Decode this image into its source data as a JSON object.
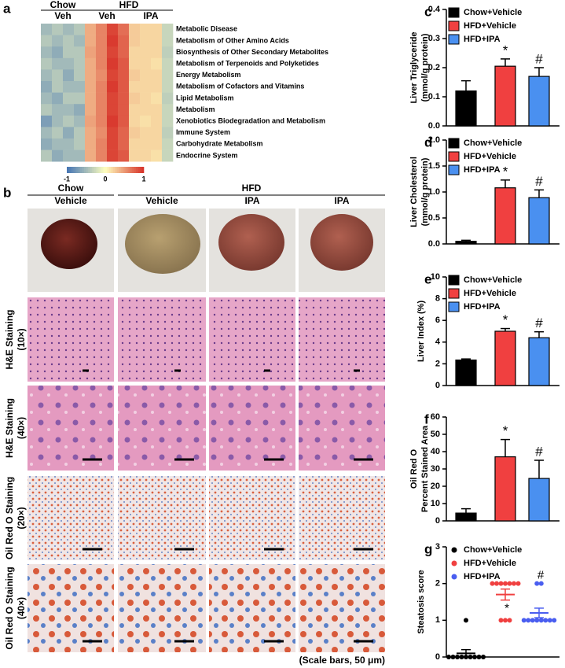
{
  "figure_b": {
    "panel": "b",
    "groups": [
      "Chow",
      "HFD"
    ],
    "columns": [
      "Vehicle",
      "Vehicle",
      "IPA",
      "IPA"
    ],
    "rows": [
      [
        "H&E Staining",
        "(10×)"
      ],
      [
        "H&E Staining",
        "(40×)"
      ],
      [
        "Oil Red O Staining",
        "(20×)"
      ],
      [
        "Oil Red O Staining",
        "(40×)"
      ]
    ],
    "note": "(Scale bars, 50 μm)"
  },
  "chart_data": [
    {
      "type": "heatmap",
      "panel": "a",
      "groups": [
        "Chow",
        "HFD"
      ],
      "subgroups": [
        "Veh",
        "Veh",
        "IPA"
      ],
      "rows": [
        "Metabolic Disease",
        "Metabolism of Other Amino Acids",
        "Biosynthesis of Other Secondary Metabolites",
        "Metabolism of Terpenoids and Polyketides",
        "Energy Metabolism",
        "Metabolism of Cofactors and Vitamins",
        "Lipid Metabolism",
        "Metabolism",
        "Xenobiotics Biodegradation and Metabolism",
        "Immune System",
        "Carbohydrate Metabolism",
        "Endocrine System"
      ],
      "values": [
        [
          -0.5,
          -0.4,
          -0.5,
          -0.4,
          0.4,
          0.6,
          0.9,
          0.7,
          0.25,
          0.2,
          0.2,
          -0.3
        ],
        [
          -0.4,
          -0.5,
          -0.4,
          -0.5,
          0.4,
          0.6,
          0.95,
          0.75,
          0.25,
          0.2,
          0.2,
          -0.3
        ],
        [
          -0.5,
          -0.6,
          -0.4,
          -0.4,
          0.45,
          0.6,
          0.9,
          0.75,
          0.2,
          0.2,
          0.2,
          -0.35
        ],
        [
          -0.4,
          -0.5,
          -0.5,
          -0.4,
          0.4,
          0.6,
          0.95,
          0.8,
          0.2,
          0.2,
          0.15,
          -0.3
        ],
        [
          -0.5,
          -0.4,
          -0.6,
          -0.4,
          0.4,
          0.55,
          0.9,
          0.8,
          0.25,
          0.2,
          0.2,
          -0.3
        ],
        [
          -0.6,
          -0.4,
          -0.5,
          -0.5,
          0.4,
          0.6,
          0.95,
          0.8,
          0.2,
          0.2,
          0.2,
          -0.3
        ],
        [
          -0.5,
          -0.6,
          -0.4,
          -0.4,
          0.4,
          0.6,
          0.9,
          0.8,
          0.25,
          0.2,
          0.15,
          -0.35
        ],
        [
          -0.4,
          -0.5,
          -0.5,
          -0.6,
          0.4,
          0.6,
          0.9,
          0.8,
          0.2,
          0.2,
          0.2,
          -0.3
        ],
        [
          -0.7,
          -0.5,
          -0.4,
          -0.5,
          0.45,
          0.6,
          0.95,
          0.8,
          0.2,
          0.15,
          0.2,
          -0.3
        ],
        [
          -0.5,
          -0.4,
          -0.6,
          -0.4,
          0.4,
          0.55,
          0.9,
          0.75,
          0.25,
          0.2,
          0.2,
          -0.35
        ],
        [
          -0.6,
          -0.5,
          -0.5,
          -0.4,
          0.4,
          0.6,
          0.9,
          0.75,
          0.2,
          0.2,
          0.2,
          -0.3
        ],
        [
          -0.4,
          -0.6,
          -0.5,
          -0.5,
          0.4,
          0.6,
          0.9,
          0.8,
          0.2,
          0.2,
          0.15,
          -0.3
        ]
      ],
      "zlim": [
        -1,
        1
      ],
      "zticks": [
        -1,
        0,
        1
      ],
      "colors": [
        "#4575b4",
        "#ffffbf",
        "#d73027"
      ]
    },
    {
      "type": "bar",
      "panel": "c",
      "ylabel": [
        "Liver Triglyceride",
        "(mmol/g protein)"
      ],
      "ylim": [
        0,
        0.4
      ],
      "yticks": [
        {
          "value": 0,
          "label": "0.0"
        },
        0.1,
        0.2,
        0.3,
        0.4
      ],
      "legend": "upper left",
      "series": [
        {
          "name": "Chow+Vehicle",
          "color": "#000000",
          "values": [
            0.12
          ],
          "errors": [
            0.035
          ]
        },
        {
          "name": "HFD+Vehicle",
          "color": "#f04040",
          "values": [
            0.205
          ],
          "errors": [
            0.025
          ]
        },
        {
          "name": "HFD+IPA",
          "color": "#4a90f0",
          "values": [
            0.17
          ],
          "errors": [
            0.03
          ]
        }
      ],
      "markers": [
        null,
        "*",
        "#"
      ]
    },
    {
      "type": "bar",
      "panel": "d",
      "ylabel": [
        "Liver Cholesterol",
        "(mmol/g protein)"
      ],
      "ylim": [
        0,
        2
      ],
      "yticks": [
        {
          "value": 0,
          "label": "0.0"
        },
        0.5,
        {
          "value": 1,
          "label": "1.0"
        },
        1.5,
        {
          "value": 2,
          "label": "2.0"
        }
      ],
      "legend": "upper left",
      "series": [
        {
          "name": "Chow+Vehicle",
          "color": "#000000",
          "values": [
            0.05
          ],
          "errors": [
            0.02
          ]
        },
        {
          "name": "HFD+Vehicle",
          "color": "#f04040",
          "values": [
            1.08
          ],
          "errors": [
            0.15
          ]
        },
        {
          "name": "HFD+IPA",
          "color": "#4a90f0",
          "values": [
            0.89
          ],
          "errors": [
            0.15
          ]
        }
      ],
      "markers": [
        null,
        "*",
        "#"
      ]
    },
    {
      "type": "bar",
      "panel": "e",
      "ylabel": [
        "Liver Index (%)"
      ],
      "ylim": [
        0,
        10
      ],
      "yticks": [
        0,
        2,
        4,
        6,
        8,
        10
      ],
      "legend": "upper left",
      "series": [
        {
          "name": "Chow+Vehicle",
          "color": "#000000",
          "values": [
            2.35
          ],
          "errors": [
            0.1
          ]
        },
        {
          "name": "HFD+Vehicle",
          "color": "#f04040",
          "values": [
            5.0
          ],
          "errors": [
            0.25
          ]
        },
        {
          "name": "HFD+IPA",
          "color": "#4a90f0",
          "values": [
            4.4
          ],
          "errors": [
            0.55
          ]
        }
      ],
      "markers": [
        null,
        "*",
        "#"
      ]
    },
    {
      "type": "bar",
      "panel": "f",
      "ylabel": [
        "Oil Red O",
        "Percent Stained Area"
      ],
      "ylim": [
        0,
        60
      ],
      "yticks": [
        0,
        10,
        20,
        30,
        40,
        50,
        60
      ],
      "series": [
        {
          "name": "Chow+Vehicle",
          "color": "#000000",
          "values": [
            4.5
          ],
          "errors": [
            2.5
          ]
        },
        {
          "name": "HFD+Vehicle",
          "color": "#f04040",
          "values": [
            37
          ],
          "errors": [
            10
          ]
        },
        {
          "name": "HFD+IPA",
          "color": "#4a90f0",
          "values": [
            24.5
          ],
          "errors": [
            10.5
          ]
        }
      ],
      "markers": [
        null,
        "*",
        "#"
      ]
    },
    {
      "type": "dot",
      "panel": "g",
      "ylabel": [
        "Steatosis score"
      ],
      "ylim": [
        0,
        3
      ],
      "yticks": [
        0,
        1,
        2,
        3
      ],
      "legend": "upper left",
      "series": [
        {
          "name": "Chow+Vehicle",
          "color": "#000000",
          "values": [
            0,
            0,
            0,
            0,
            0,
            0,
            0,
            0,
            0,
            1
          ],
          "mean": 0.1,
          "sem": 0.1
        },
        {
          "name": "HFD+Vehicle",
          "color": "#f04040",
          "values": [
            2,
            2,
            2,
            2,
            2,
            2,
            2,
            1,
            1,
            1
          ],
          "mean": 1.7,
          "sem": 0.15
        },
        {
          "name": "HFD+IPA",
          "color": "#4a5ef0",
          "values": [
            2,
            2,
            1,
            1,
            1,
            1,
            1,
            1,
            1,
            1
          ],
          "mean": 1.2,
          "sem": 0.13
        }
      ],
      "markers": [
        null,
        "*",
        "#"
      ]
    }
  ]
}
